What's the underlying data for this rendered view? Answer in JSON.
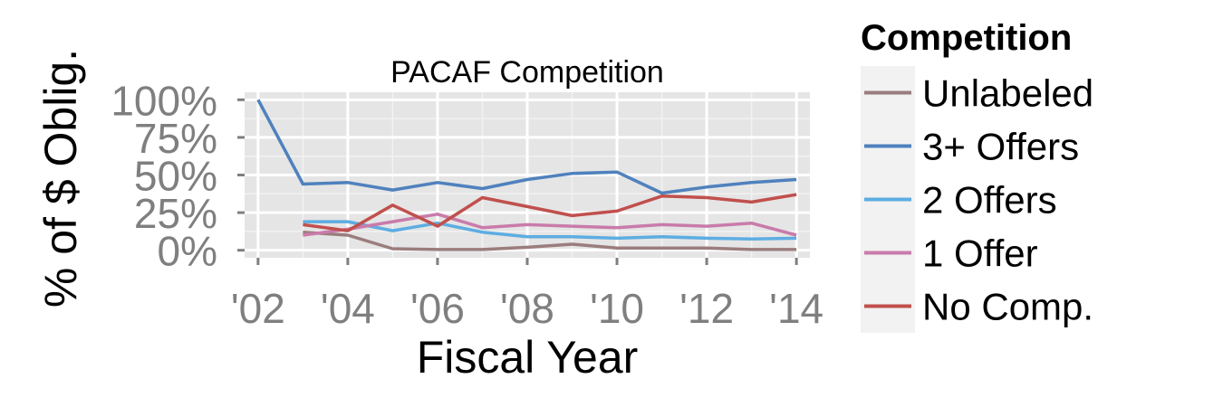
{
  "chart_data": {
    "type": "line",
    "title": "PACAF Competition",
    "xlabel": "Fiscal Year",
    "ylabel": "% of $ Oblig.",
    "x": [
      2002,
      2003,
      2004,
      2005,
      2006,
      2007,
      2008,
      2009,
      2010,
      2011,
      2012,
      2013,
      2014
    ],
    "xticks": [
      2002,
      2004,
      2006,
      2008,
      2010,
      2012,
      2014
    ],
    "xtick_labels": [
      "'02",
      "'04",
      "'06",
      "'08",
      "'10",
      "'12",
      "'14"
    ],
    "yticks": [
      0,
      0.25,
      0.5,
      0.75,
      1.0
    ],
    "ytick_labels": [
      "0%",
      "25%",
      "50%",
      "75%",
      "100%"
    ],
    "xlim": [
      2001.7,
      2014.3
    ],
    "ylim": [
      -0.05,
      1.05
    ],
    "grid": true,
    "legend": {
      "title": "Competition",
      "position": "right"
    },
    "series": [
      {
        "name": "Unlabeled",
        "color": "#9B7D7D",
        "values": [
          null,
          0.12,
          0.1,
          0.01,
          0.005,
          0.005,
          0.02,
          0.04,
          0.015,
          0.015,
          0.015,
          0.005,
          0.005
        ]
      },
      {
        "name": "3+ Offers",
        "color": "#4F81BD",
        "values": [
          1.0,
          0.44,
          0.45,
          0.4,
          0.45,
          0.41,
          0.47,
          0.51,
          0.52,
          0.38,
          0.42,
          0.45,
          0.47
        ]
      },
      {
        "name": "2 Offers",
        "color": "#5DADE2",
        "values": [
          null,
          0.19,
          0.19,
          0.13,
          0.18,
          0.12,
          0.09,
          0.09,
          0.08,
          0.09,
          0.08,
          0.075,
          0.08
        ]
      },
      {
        "name": "1 Offer",
        "color": "#C97BAA",
        "values": [
          null,
          0.1,
          0.14,
          0.19,
          0.24,
          0.15,
          0.17,
          0.16,
          0.15,
          0.17,
          0.16,
          0.18,
          0.1
        ]
      },
      {
        "name": "No Comp.",
        "color": "#C0504D",
        "values": [
          null,
          0.17,
          0.13,
          0.3,
          0.16,
          0.35,
          0.29,
          0.23,
          0.26,
          0.36,
          0.35,
          0.32,
          0.37
        ]
      }
    ]
  }
}
